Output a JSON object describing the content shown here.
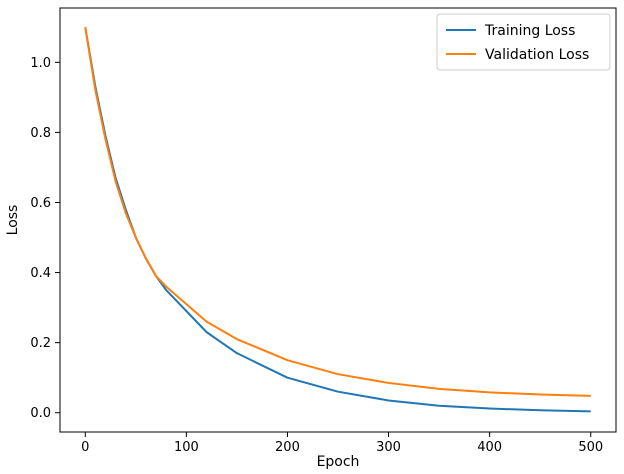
{
  "chart_data": {
    "type": "line",
    "title": "",
    "xlabel": "Epoch",
    "ylabel": "Loss",
    "xlim": [
      -25,
      525
    ],
    "ylim": [
      -0.055,
      1.155
    ],
    "xticks": [
      0,
      100,
      200,
      300,
      400,
      500
    ],
    "xtick_labels": [
      "0",
      "100",
      "200",
      "300",
      "400",
      "500"
    ],
    "yticks": [
      0.0,
      0.2,
      0.4,
      0.6,
      0.8,
      1.0
    ],
    "ytick_labels": [
      "0.0",
      "0.2",
      "0.4",
      "0.6",
      "0.8",
      "1.0"
    ],
    "grid": false,
    "legend_position": "top-right",
    "series": [
      {
        "name": "Training Loss",
        "color": "#1f77b4",
        "x": [
          0,
          10,
          20,
          30,
          40,
          50,
          60,
          70,
          80,
          100,
          120,
          150,
          200,
          250,
          300,
          350,
          400,
          450,
          500
        ],
        "values": [
          1.1,
          0.93,
          0.79,
          0.67,
          0.58,
          0.5,
          0.44,
          0.39,
          0.35,
          0.29,
          0.23,
          0.17,
          0.1,
          0.06,
          0.035,
          0.02,
          0.012,
          0.007,
          0.004
        ]
      },
      {
        "name": "Validation Loss",
        "color": "#ff7f0e",
        "x": [
          0,
          10,
          20,
          30,
          40,
          50,
          60,
          70,
          80,
          100,
          120,
          150,
          200,
          250,
          300,
          350,
          400,
          450,
          500
        ],
        "values": [
          1.1,
          0.92,
          0.78,
          0.66,
          0.57,
          0.5,
          0.44,
          0.39,
          0.36,
          0.31,
          0.26,
          0.21,
          0.15,
          0.11,
          0.085,
          0.068,
          0.058,
          0.052,
          0.048
        ]
      }
    ]
  }
}
